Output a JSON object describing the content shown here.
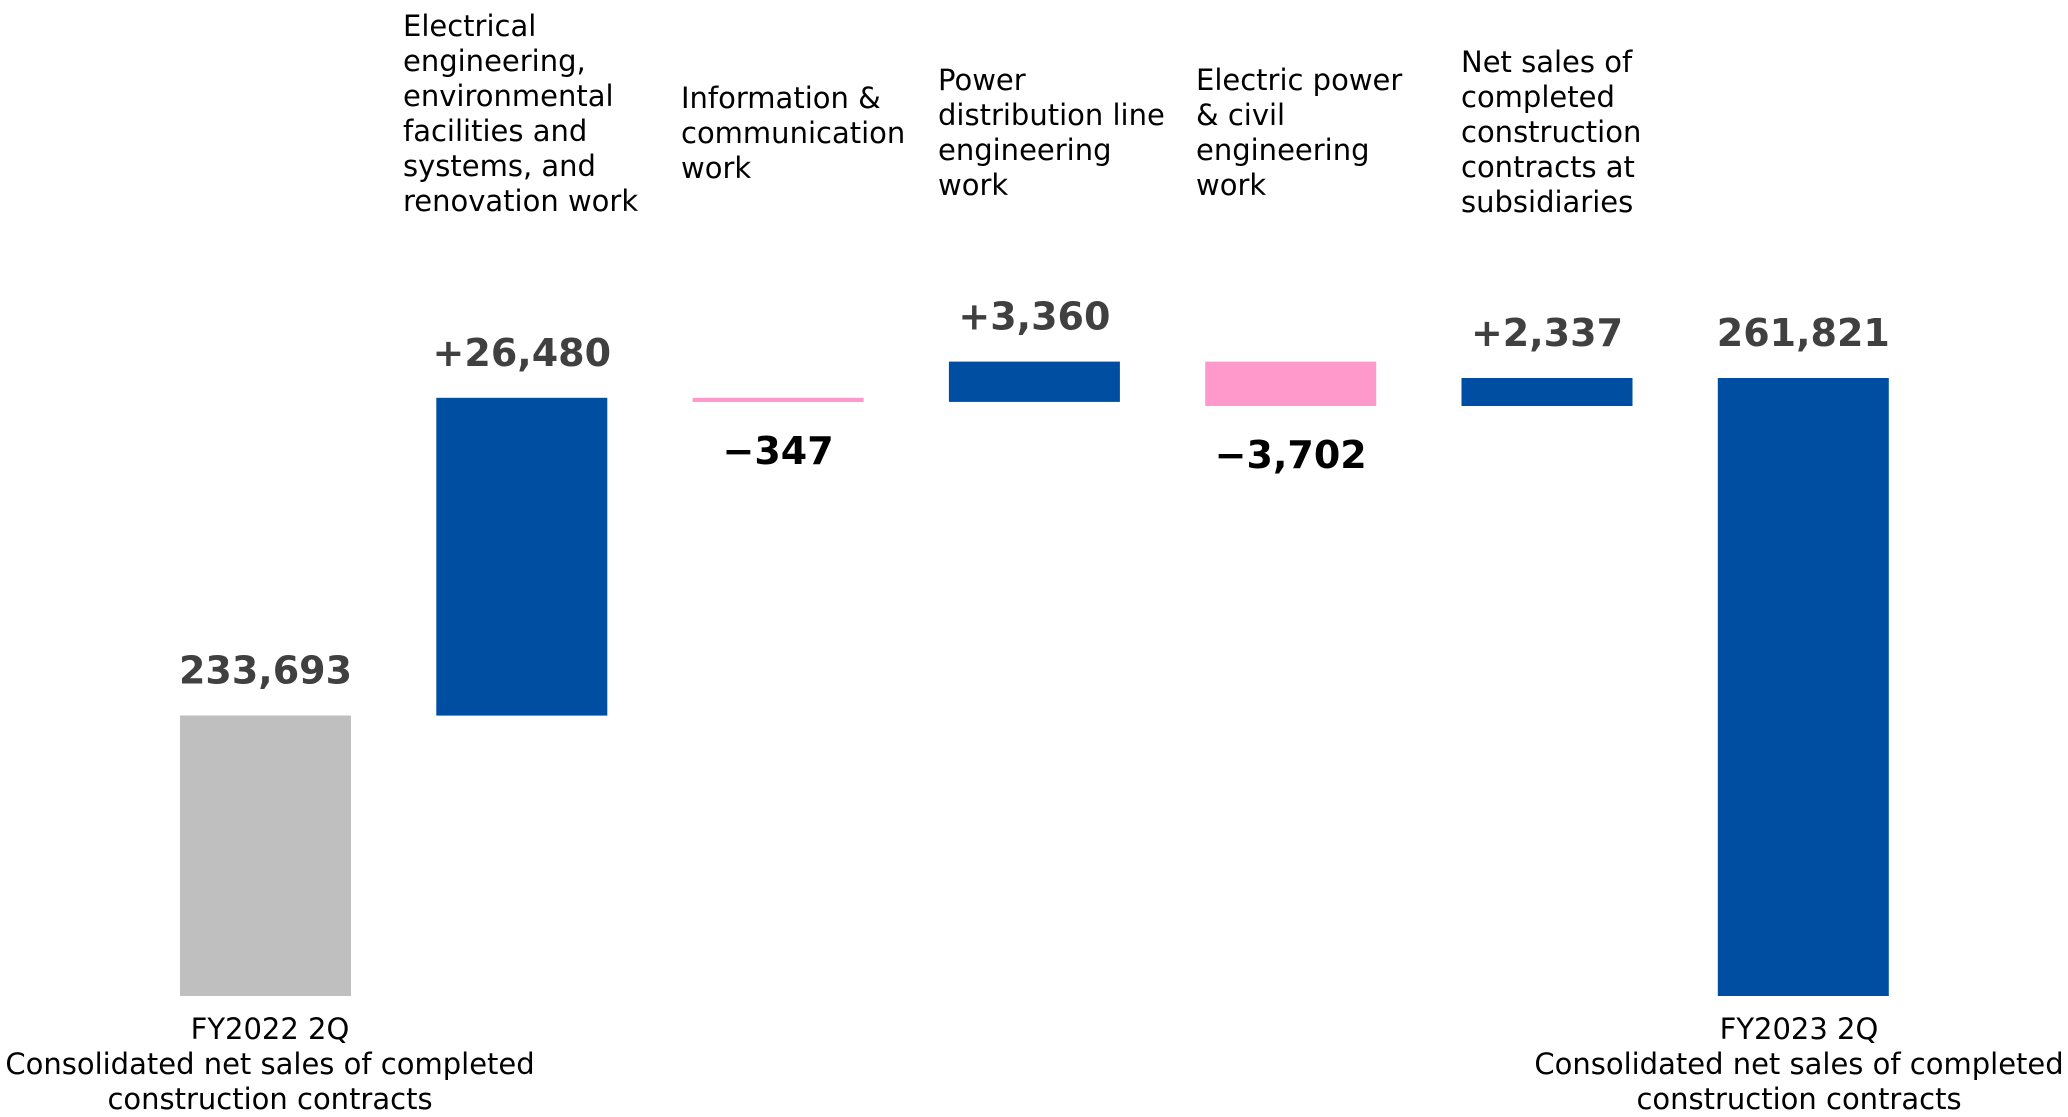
{
  "chart_data": {
    "type": "bar",
    "subtype": "waterfall",
    "categories": [
      "FY2022 2Q\nConsolidated net sales of completed\nconstruction contracts",
      "Electrical\nengineering,\nenvironmental\nfacilities and\nsystems, and\nrenovation work",
      "Information &\ncommunication\nwork",
      "Power\ndistribution line\nengineering\nwork",
      "Electric power\n& civil\nengineering\nwork",
      "Net sales of\ncompleted\nconstruction\ncontracts at\nsubsidiaries",
      "FY2023 2Q\nConsolidated net sales of completed\nconstruction contracts"
    ],
    "values": [
      233693,
      26480,
      -347,
      3360,
      -3702,
      2337,
      261821
    ],
    "value_labels": [
      "233,693",
      "+26,480",
      "−347",
      "+3,360",
      "−3,702",
      "+2,337",
      "261,821"
    ],
    "kinds": [
      "total",
      "delta",
      "delta",
      "delta",
      "delta",
      "delta",
      "total"
    ],
    "title": "",
    "xlabel": "",
    "ylabel": "",
    "grid": false,
    "legend": "none",
    "colors": {
      "base_total": "#bfbfbf",
      "end_total": "#004ea2",
      "increase": "#004ea2",
      "decrease": "#ff99cc",
      "value_text_positive": "#404040",
      "value_text_negative": "#000000"
    }
  }
}
